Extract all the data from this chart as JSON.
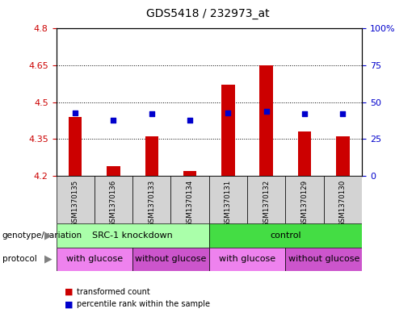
{
  "title": "GDS5418 / 232973_at",
  "samples": [
    "GSM1370135",
    "GSM1370136",
    "GSM1370133",
    "GSM1370134",
    "GSM1370131",
    "GSM1370132",
    "GSM1370129",
    "GSM1370130"
  ],
  "red_values": [
    4.44,
    4.24,
    4.36,
    4.22,
    4.57,
    4.65,
    4.38,
    4.36
  ],
  "blue_values": [
    43,
    38,
    42,
    38,
    43,
    44,
    42,
    42
  ],
  "y_min": 4.2,
  "y_max": 4.8,
  "y_ticks": [
    4.2,
    4.35,
    4.5,
    4.65,
    4.8
  ],
  "y_ticks_labels": [
    "4.2",
    "4.35",
    "4.5",
    "4.65",
    "4.8"
  ],
  "y2_ticks": [
    0,
    25,
    50,
    75,
    100
  ],
  "y2_ticks_labels": [
    "0",
    "25",
    "50",
    "75",
    "100%"
  ],
  "dotted_lines": [
    4.35,
    4.5,
    4.65
  ],
  "genotype_groups": [
    {
      "label": "SRC-1 knockdown",
      "start": 0,
      "end": 4,
      "color": "#aaffaa"
    },
    {
      "label": "control",
      "start": 4,
      "end": 8,
      "color": "#44dd44"
    }
  ],
  "protocol_groups": [
    {
      "label": "with glucose",
      "start": 0,
      "end": 2,
      "color": "#ee82ee"
    },
    {
      "label": "without glucose",
      "start": 2,
      "end": 4,
      "color": "#cc55cc"
    },
    {
      "label": "with glucose",
      "start": 4,
      "end": 6,
      "color": "#ee82ee"
    },
    {
      "label": "without glucose",
      "start": 6,
      "end": 8,
      "color": "#cc55cc"
    }
  ],
  "legend_items": [
    {
      "label": "transformed count",
      "color": "#cc0000"
    },
    {
      "label": "percentile rank within the sample",
      "color": "#0000cc"
    }
  ],
  "bar_bottom": 4.2,
  "bar_width": 0.35,
  "blue_square_size": 18
}
